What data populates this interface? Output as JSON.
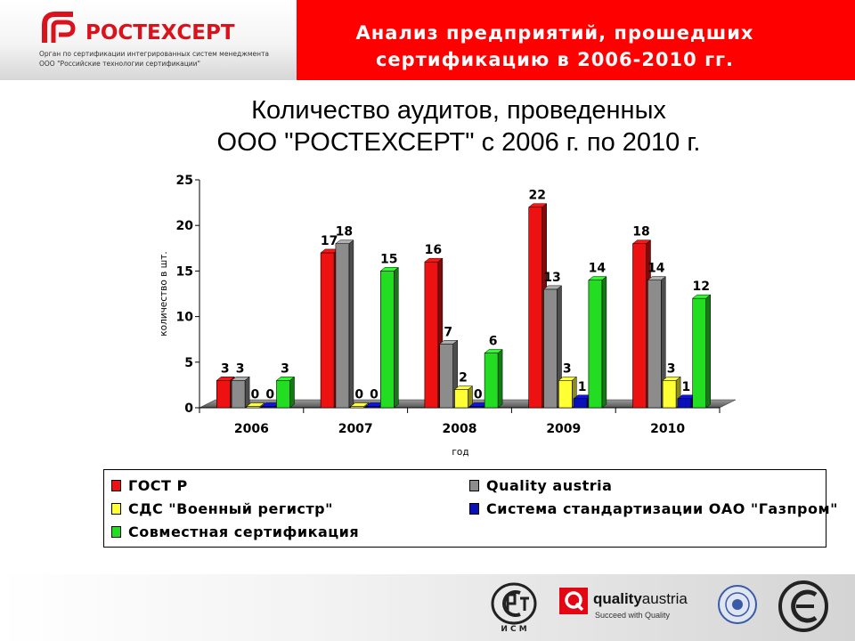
{
  "header": {
    "brand_name": "РОСТЕХСЕРТ",
    "brand_line1": "Орган по сертификации интегрированных систем менеджмента",
    "brand_line2": "ООО \"Российские технологии сертификации\"",
    "title_line1": "Анализ предприятий, прошедших",
    "title_line2": "сертификацию в 2006-2010 гг."
  },
  "colors": {
    "header_red": "#ff0000",
    "brand_red": "#d9121b",
    "series": [
      "#ee1111",
      "#8c8c8c",
      "#ffff33",
      "#0a10b8",
      "#22dd22"
    ]
  },
  "chart_data": {
    "type": "bar",
    "title_line1": "Количество аудитов, проведенных",
    "title_line2": "ООО \"РОСТЕХСЕРТ\" с 2006 г. по 2010 г.",
    "xlabel": "год",
    "ylabel": "количество в шт.",
    "ylim": [
      0,
      25
    ],
    "yticks": [
      "0",
      "5",
      "10",
      "15",
      "20",
      "25"
    ],
    "categories": [
      "2006",
      "2007",
      "2008",
      "2009",
      "2010"
    ],
    "series": [
      {
        "name": "ГОСТ Р",
        "values": [
          3,
          17,
          16,
          22,
          18
        ]
      },
      {
        "name": "Quality austria",
        "values": [
          3,
          18,
          7,
          13,
          14
        ]
      },
      {
        "name": "СДС \"Военный регистр\"",
        "values": [
          0,
          0,
          2,
          3,
          3
        ]
      },
      {
        "name": "Система стандартизации ОАО \"Газпром\"",
        "values": [
          0,
          0,
          0,
          1,
          1
        ]
      },
      {
        "name": "Совместная сертификация",
        "values": [
          3,
          15,
          6,
          14,
          12
        ]
      }
    ],
    "legend_position": "bottom",
    "grid": false,
    "three_d": true
  },
  "footer": {
    "qa_brand_bold": "quality",
    "qa_brand_rest": "austria",
    "qa_tagline": "Succeed with Quality",
    "gost_letters": "И С М"
  }
}
